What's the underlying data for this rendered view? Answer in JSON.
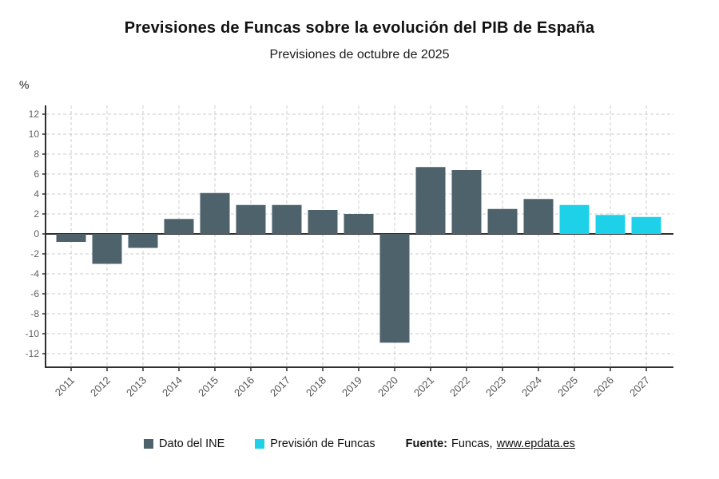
{
  "header": {
    "title": "Previsiones de Funcas sobre la evolución del PIB de España",
    "subtitle": "Previsiones de octubre de 2025",
    "unit_label": "%"
  },
  "legend": [
    {
      "label": "Dato del INE",
      "color": "#4e626c"
    },
    {
      "label": "Previsión de Funcas",
      "color": "#1fd1e8"
    }
  ],
  "source": {
    "prefix": "Fuente:",
    "publisher": "Funcas,",
    "link": "www.epdata.es"
  },
  "colors": {
    "ine_bar": "#4e626c",
    "forecast_bar": "#1fd1e8",
    "gridline": "#cccccc",
    "axis": "#2e2e2e",
    "tick_text": "#5f5f5f"
  },
  "chart_data": {
    "type": "bar",
    "title": "Previsiones de Funcas sobre la evolución del PIB de España",
    "subtitle": "Previsiones de octubre de 2025",
    "ylabel": "%",
    "xlabel": "",
    "ylim": [
      -12,
      12
    ],
    "ytick_step": 2,
    "grid": true,
    "legend_position": "bottom",
    "categories": [
      "2011",
      "2012",
      "2013",
      "2014",
      "2015",
      "2016",
      "2017",
      "2018",
      "2019",
      "2020",
      "2021",
      "2022",
      "2023",
      "2024",
      "2025",
      "2026",
      "2027"
    ],
    "series": [
      {
        "name": "Dato del INE",
        "color": "#4e626c",
        "values": [
          -0.8,
          -3.0,
          -1.4,
          1.5,
          4.1,
          2.9,
          2.9,
          2.4,
          2.0,
          -10.9,
          6.7,
          6.4,
          2.5,
          3.5,
          null,
          null,
          null
        ]
      },
      {
        "name": "Previsión de Funcas",
        "color": "#1fd1e8",
        "values": [
          null,
          null,
          null,
          null,
          null,
          null,
          null,
          null,
          null,
          null,
          null,
          null,
          null,
          null,
          2.9,
          1.9,
          1.7
        ]
      }
    ]
  }
}
